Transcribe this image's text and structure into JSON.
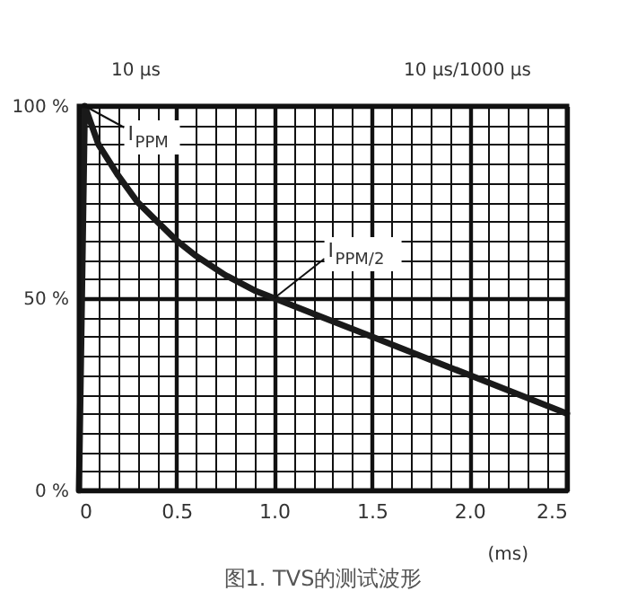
{
  "chart_data": {
    "type": "line",
    "title": "图1. TVS的测试波形",
    "xlabel": "(ms)",
    "x": [
      0,
      0.03,
      0.1,
      0.2,
      0.3,
      0.4,
      0.5,
      0.6,
      0.75,
      0.9,
      1.0,
      1.25,
      1.5,
      1.75,
      2.0,
      2.25,
      2.5
    ],
    "series": [
      {
        "color": "#1a1a1a",
        "values": [
          0,
          100,
          90,
          82,
          75,
          70,
          65,
          61,
          56,
          52,
          50,
          45,
          40,
          35,
          30,
          25,
          20
        ]
      }
    ],
    "xlim": [
      0,
      2.5
    ],
    "xticks": [
      0,
      {
        "value": 0.1,
        "label": null
      },
      {
        "value": 0.2,
        "label": null
      },
      {
        "value": 0.3,
        "label": null
      },
      {
        "value": 0.4,
        "label": null
      },
      0.5,
      {
        "value": 0.6,
        "label": null
      },
      {
        "value": 0.7,
        "label": null
      },
      {
        "value": 0.8,
        "label": null
      },
      {
        "value": 0.9,
        "label": null
      },
      {
        "value": 1,
        "label": "1.0"
      },
      {
        "value": 1.1,
        "label": null
      },
      {
        "value": 1.2,
        "label": null
      },
      {
        "value": 1.3,
        "label": null
      },
      {
        "value": 1.4,
        "label": null
      },
      1.5,
      {
        "value": 1.6,
        "label": null
      },
      {
        "value": 1.7,
        "label": null
      },
      {
        "value": 1.8,
        "label": null
      },
      {
        "value": 1.9,
        "label": null
      },
      {
        "value": 2,
        "label": "2.0"
      },
      {
        "value": 2.1,
        "label": null
      },
      {
        "value": 2.2,
        "label": null
      },
      {
        "value": 2.3,
        "label": null
      },
      {
        "value": 2.4,
        "label": null
      },
      2.5
    ],
    "ylim": [
      0,
      100
    ],
    "yticks": [
      {
        "value": 0,
        "label": "0 %"
      },
      {
        "value": 5,
        "label": null
      },
      {
        "value": 10,
        "label": null
      },
      {
        "value": 15,
        "label": null
      },
      {
        "value": 20,
        "label": null
      },
      {
        "value": 25,
        "label": null
      },
      {
        "value": 30,
        "label": null
      },
      {
        "value": 35,
        "label": null
      },
      {
        "value": 40,
        "label": null
      },
      {
        "value": 45,
        "label": null
      },
      {
        "value": 50,
        "label": "50 %"
      },
      {
        "value": 55,
        "label": null
      },
      {
        "value": 60,
        "label": null
      },
      {
        "value": 65,
        "label": null
      },
      {
        "value": 70,
        "label": null
      },
      {
        "value": 75,
        "label": null
      },
      {
        "value": 80,
        "label": null
      },
      {
        "value": 85,
        "label": null
      },
      {
        "value": 90,
        "label": null
      },
      {
        "value": 95,
        "label": null
      },
      {
        "value": 100,
        "label": "100 %"
      }
    ],
    "grid": true,
    "marker": "none",
    "line_style": "solid",
    "annotations": [
      {
        "text": "I$_{PPM}$",
        "x": 0.03,
        "y": 100
      },
      {
        "text": "I$_{PPM}$/2",
        "x": 1.0,
        "y": 50
      },
      "10 μs",
      "10 μs/1000 μs"
    ]
  }
}
